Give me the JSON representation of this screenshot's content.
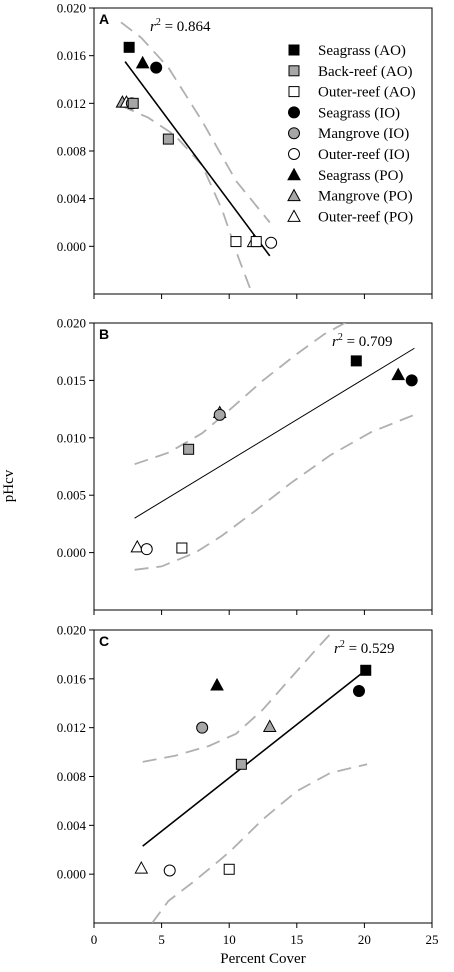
{
  "figure": {
    "ylabel": "pHcv",
    "xlabel": "Percent Cover",
    "x_ticks": [
      "0",
      "5",
      "10",
      "15",
      "20",
      "25"
    ]
  },
  "legend": [
    {
      "label": "Seagrass (AO)",
      "shape": "square",
      "fill": "black"
    },
    {
      "label": "Back-reef (AO)",
      "shape": "square",
      "fill": "gray"
    },
    {
      "label": "Outer-reef (AO)",
      "shape": "square",
      "fill": "white"
    },
    {
      "label": "Seagrass (IO)",
      "shape": "circle",
      "fill": "black"
    },
    {
      "label": "Mangrove (IO)",
      "shape": "circle",
      "fill": "gray"
    },
    {
      "label": "Outer-reef (IO)",
      "shape": "circle",
      "fill": "white"
    },
    {
      "label": "Seagrass (PO)",
      "shape": "triangle",
      "fill": "black"
    },
    {
      "label": "Mangrove (PO)",
      "shape": "triangle",
      "fill": "gray"
    },
    {
      "label": "Outer-reef (PO)",
      "shape": "triangle",
      "fill": "white"
    }
  ],
  "colors": {
    "black": "#000000",
    "gray": "#a6a6a6",
    "white": "#ffffff",
    "ci": "#b0b0b0",
    "fit": "#000000"
  },
  "chart_data": [
    {
      "type": "scatter",
      "panel": "A",
      "annotation": {
        "prefix": "r",
        "sup": "2",
        "suffix": " = 0.864"
      },
      "xlim": [
        0,
        25
      ],
      "ylim": [
        -0.004,
        0.02
      ],
      "y_ticks": [
        "0.000",
        "0.004",
        "0.008",
        "0.012",
        "0.016",
        "0.020"
      ],
      "y_tick_values": [
        0,
        0.004,
        0.008,
        0.012,
        0.016,
        0.02
      ],
      "fit": {
        "x": [
          2.3,
          13.0
        ],
        "y": [
          0.0155,
          -0.0008
        ]
      },
      "ci_upper": [
        [
          2.0,
          0.0188
        ],
        [
          3.5,
          0.0175
        ],
        [
          5.5,
          0.015
        ],
        [
          8.0,
          0.0105
        ],
        [
          10.5,
          0.0055
        ],
        [
          13.0,
          0.002
        ]
      ],
      "ci_lower": [
        [
          2.0,
          0.0118
        ],
        [
          4.0,
          0.0108
        ],
        [
          6.0,
          0.0093
        ],
        [
          8.0,
          0.0068
        ],
        [
          9.5,
          0.003
        ],
        [
          10.7,
          -0.001
        ],
        [
          11.7,
          -0.004
        ]
      ],
      "points": [
        {
          "series": "Seagrass (AO)",
          "x": 2.6,
          "y": 0.0167
        },
        {
          "series": "Seagrass (PO)",
          "x": 3.6,
          "y": 0.0154
        },
        {
          "series": "Seagrass (IO)",
          "x": 4.6,
          "y": 0.015
        },
        {
          "series": "Mangrove (PO)",
          "x": 2.1,
          "y": 0.0121
        },
        {
          "series": "Outer-reef (PO)",
          "x": 2.4,
          "y": 0.0121
        },
        {
          "series": "Mangrove (IO)",
          "x": 2.8,
          "y": 0.012
        },
        {
          "series": "Back-reef (AO)",
          "x": 2.9,
          "y": 0.012
        },
        {
          "series": "Back-reef (AO)",
          "x": 5.5,
          "y": 0.009
        },
        {
          "series": "Outer-reef (AO)",
          "x": 10.5,
          "y": 0.0004
        },
        {
          "series": "Outer-reef (PO)",
          "x": 11.8,
          "y": 0.0004
        },
        {
          "series": "Outer-reef (AO)",
          "x": 12.0,
          "y": 0.0004
        },
        {
          "series": "Outer-reef (IO)",
          "x": 13.1,
          "y": 0.0003
        }
      ]
    },
    {
      "type": "scatter",
      "panel": "B",
      "annotation": {
        "prefix": "r",
        "sup": "2",
        "suffix": " = 0.709"
      },
      "xlim": [
        0,
        25
      ],
      "ylim": [
        -0.005,
        0.02
      ],
      "y_ticks": [
        "0.000",
        "0.005",
        "0.010",
        "0.015",
        "0.020"
      ],
      "y_tick_values": [
        0,
        0.005,
        0.01,
        0.015,
        0.02
      ],
      "fit": {
        "x": [
          3.0,
          23.7
        ],
        "y": [
          0.003,
          0.0178
        ]
      },
      "ci_upper": [
        [
          3.0,
          0.0077
        ],
        [
          5.5,
          0.0087
        ],
        [
          8.0,
          0.0104
        ],
        [
          10.0,
          0.0124
        ],
        [
          12.5,
          0.015
        ],
        [
          15.0,
          0.0173
        ],
        [
          17.0,
          0.019
        ],
        [
          19.0,
          0.0203
        ],
        [
          21.0,
          0.0212
        ]
      ],
      "ci_lower": [
        [
          3.0,
          -0.0015
        ],
        [
          5.0,
          -0.0012
        ],
        [
          7.5,
          0.0
        ],
        [
          9.5,
          0.0015
        ],
        [
          12.0,
          0.0037
        ],
        [
          14.5,
          0.006
        ],
        [
          17.5,
          0.0085
        ],
        [
          20.5,
          0.0105
        ],
        [
          23.7,
          0.012
        ]
      ],
      "points": [
        {
          "series": "Seagrass (AO)",
          "x": 19.4,
          "y": 0.0167
        },
        {
          "series": "Seagrass (PO)",
          "x": 22.5,
          "y": 0.0155
        },
        {
          "series": "Seagrass (IO)",
          "x": 23.5,
          "y": 0.015
        },
        {
          "series": "Mangrove (PO)",
          "x": 9.3,
          "y": 0.0122
        },
        {
          "series": "Mangrove (IO)",
          "x": 9.3,
          "y": 0.012
        },
        {
          "series": "Back-reef (AO)",
          "x": 7.0,
          "y": 0.009
        },
        {
          "series": "Outer-reef (PO)",
          "x": 3.2,
          "y": 0.0005
        },
        {
          "series": "Outer-reef (IO)",
          "x": 3.9,
          "y": 0.0003
        },
        {
          "series": "Outer-reef (AO)",
          "x": 6.5,
          "y": 0.0004
        }
      ]
    },
    {
      "type": "scatter",
      "panel": "C",
      "annotation": {
        "prefix": "r",
        "sup": "2",
        "suffix": " = 0.529"
      },
      "xlim": [
        0,
        25
      ],
      "ylim": [
        -0.004,
        0.02
      ],
      "y_ticks": [
        "0.000",
        "0.004",
        "0.008",
        "0.012",
        "0.016",
        "0.020"
      ],
      "y_tick_values": [
        0,
        0.004,
        0.008,
        0.012,
        0.016,
        0.02
      ],
      "fit": {
        "x": [
          3.6,
          20.2
        ],
        "y": [
          0.0023,
          0.0168
        ]
      },
      "ci_upper": [
        [
          3.6,
          0.0092
        ],
        [
          6.0,
          0.0097
        ],
        [
          8.5,
          0.0105
        ],
        [
          10.5,
          0.0115
        ],
        [
          12.5,
          0.0135
        ],
        [
          14.5,
          0.016
        ],
        [
          16.5,
          0.0185
        ],
        [
          18.0,
          0.0203
        ]
      ],
      "ci_lower": [
        [
          4.3,
          -0.004
        ],
        [
          5.5,
          -0.0022
        ],
        [
          7.5,
          -0.0005
        ],
        [
          10.0,
          0.0018
        ],
        [
          12.5,
          0.0045
        ],
        [
          15.0,
          0.0068
        ],
        [
          17.5,
          0.0083
        ],
        [
          20.2,
          0.009
        ]
      ],
      "points": [
        {
          "series": "Seagrass (AO)",
          "x": 20.1,
          "y": 0.0167
        },
        {
          "series": "Seagrass (IO)",
          "x": 19.6,
          "y": 0.015
        },
        {
          "series": "Seagrass (PO)",
          "x": 9.1,
          "y": 0.0155
        },
        {
          "series": "Mangrove (IO)",
          "x": 8.0,
          "y": 0.012
        },
        {
          "series": "Mangrove (PO)",
          "x": 13.0,
          "y": 0.0121
        },
        {
          "series": "Back-reef (AO)",
          "x": 10.9,
          "y": 0.009
        },
        {
          "series": "Outer-reef (PO)",
          "x": 3.5,
          "y": 0.0005
        },
        {
          "series": "Outer-reef (IO)",
          "x": 5.6,
          "y": 0.0003
        },
        {
          "series": "Outer-reef (AO)",
          "x": 10.0,
          "y": 0.0004
        }
      ]
    }
  ]
}
